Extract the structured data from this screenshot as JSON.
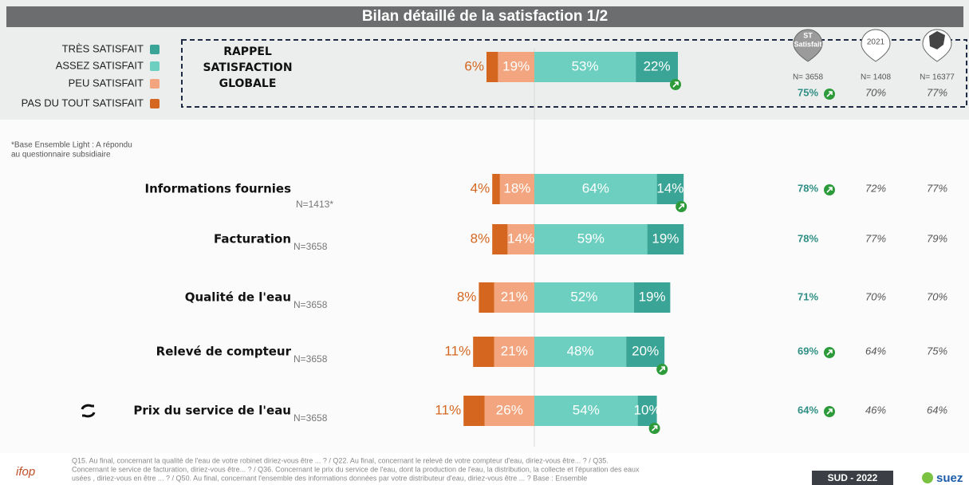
{
  "chart_data": {
    "type": "diverging_bar",
    "title": "Bilan détaillé de la satisfaction 1/2",
    "categories": [
      "RAPPEL SATISFACTION GLOBALE",
      "Informations fournies",
      "Facturation",
      "Qualité de l'eau",
      "Relevé de compteur",
      "Prix du service de l'eau"
    ],
    "n_labels": [
      "N= 3658",
      "N=1413*",
      "N=3658",
      "N=3658",
      "N=3658",
      "N=3658"
    ],
    "series": [
      {
        "name": "PAS DU TOUT SATISFAIT",
        "color": "#d4661f",
        "side": "negative",
        "values": [
          6,
          4,
          8,
          8,
          11,
          11
        ],
        "value_labels": [
          "6%",
          "4%",
          "8%",
          "8%",
          "11%",
          "11%"
        ]
      },
      {
        "name": "PEU SATISFAIT",
        "color": "#f2a57e",
        "side": "negative",
        "values": [
          19,
          18,
          14,
          21,
          21,
          26
        ],
        "value_labels": [
          "19%",
          "18%",
          "14%",
          "21%",
          "21%",
          "26%"
        ]
      },
      {
        "name": "ASSEZ SATISFAIT",
        "color": "#6dcfc0",
        "side": "positive",
        "values": [
          53,
          64,
          59,
          52,
          48,
          54
        ],
        "value_labels": [
          "53%",
          "64%",
          "59%",
          "52%",
          "48%",
          "54%"
        ]
      },
      {
        "name": "TRÈS SATISFAIT",
        "color": "#3aa596",
        "side": "positive",
        "values": [
          22,
          14,
          19,
          19,
          20,
          10
        ],
        "value_labels": [
          "22%",
          "14%",
          "19%",
          "19%",
          "20%",
          "10%"
        ]
      }
    ],
    "trend_up": [
      true,
      true,
      false,
      false,
      true,
      true
    ],
    "comparison": {
      "st_label": [
        "ST",
        "Satisfait"
      ],
      "year": "2021",
      "n": [
        "N= 3658",
        "N= 1408",
        "N= 16377"
      ],
      "rows": [
        [
          "75%",
          "70%",
          "77%"
        ],
        [
          "78%",
          "72%",
          "77%"
        ],
        [
          "78%",
          "77%",
          "79%"
        ],
        [
          "71%",
          "70%",
          "70%"
        ],
        [
          "69%",
          "64%",
          "75%"
        ],
        [
          "64%",
          "46%",
          "64%"
        ]
      ]
    }
  },
  "base_note": [
    "*Base Ensemble Light : A répondu",
    "au questionnaire subsidiaire"
  ],
  "footnote_lines": [
    "Q15. Au final, concernant la qualité de l'eau de votre robinet diriez-vous être ... ? / Q22. Au final, concernant le relevé de votre compteur d'eau, diriez-vous être... ? / Q35.",
    "Concernant le service de facturation, diriez-vous être... ? / Q36. Concernant le prix du service de l'eau, dont la production de l'eau, la distribution, la collecte et l'épuration des eaux",
    "usées , diriez-vous en être ... ? / Q50. Au final, concernant l'ensemble des informations données par votre distributeur d'eau, diriez-vous être ... ? Base : Ensemble"
  ],
  "region": "SUD - 2022",
  "logo_left": "ifop",
  "logo_right": "suez"
}
